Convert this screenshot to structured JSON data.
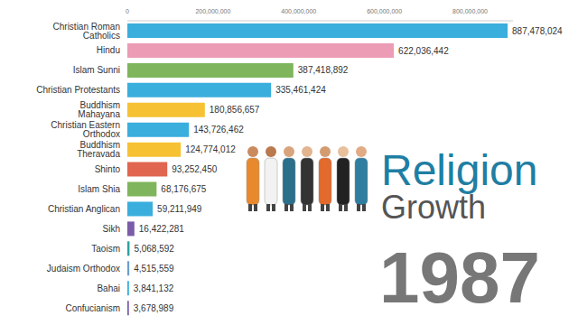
{
  "chart_data": {
    "type": "bar",
    "title": "Religion",
    "subtitle": "Growth",
    "annotations": [
      "1987"
    ],
    "orientation": "horizontal",
    "categories": [
      "Christian Roman Catholics",
      "Hindu",
      "Islam Sunni",
      "Christian Protestants",
      "Buddhism Mahayana",
      "Christian Eastern Orthodox",
      "Buddhism Theravada",
      "Shinto",
      "Islam Shia",
      "Christian Anglican",
      "Sikh",
      "Taoism",
      "Judaism Orthodox",
      "Bahai",
      "Confucianism"
    ],
    "values": [
      887478024,
      622036442,
      387418892,
      335461424,
      180856657,
      143726462,
      124774012,
      93252450,
      68176675,
      59211949,
      16422281,
      5068592,
      4515559,
      3841132,
      3678989
    ],
    "value_labels": [
      "887,478,024",
      "622,036,442",
      "387,418,892",
      "335,461,424",
      "180,856,657",
      "143,726,462",
      "124,774,012",
      "93,252,450",
      "68,176,675",
      "59,211,949",
      "16,422,281",
      "5,068,592",
      "4,515,559",
      "3,841,132",
      "3,678,989"
    ],
    "colors": [
      "#3aaedc",
      "#ec9cb5",
      "#7fb55c",
      "#3aaedc",
      "#f6c234",
      "#3aaedc",
      "#f6c234",
      "#e0664f",
      "#7fb55c",
      "#3aaedc",
      "#7a5ca8",
      "#2ba39c",
      "#6a9fd0",
      "#3aaedc",
      "#7a5ca8"
    ],
    "xlim": [
      0,
      900000000
    ],
    "xticks": [
      0,
      {
        "value": 200000000,
        "label": "200,000,000"
      },
      {
        "value": 400000000,
        "label": "400,000,000"
      },
      {
        "value": 600000000,
        "label": "600,000,000"
      },
      {
        "value": 800000000,
        "label": "800,000,000"
      }
    ],
    "grid": false,
    "data_labels": true
  }
}
